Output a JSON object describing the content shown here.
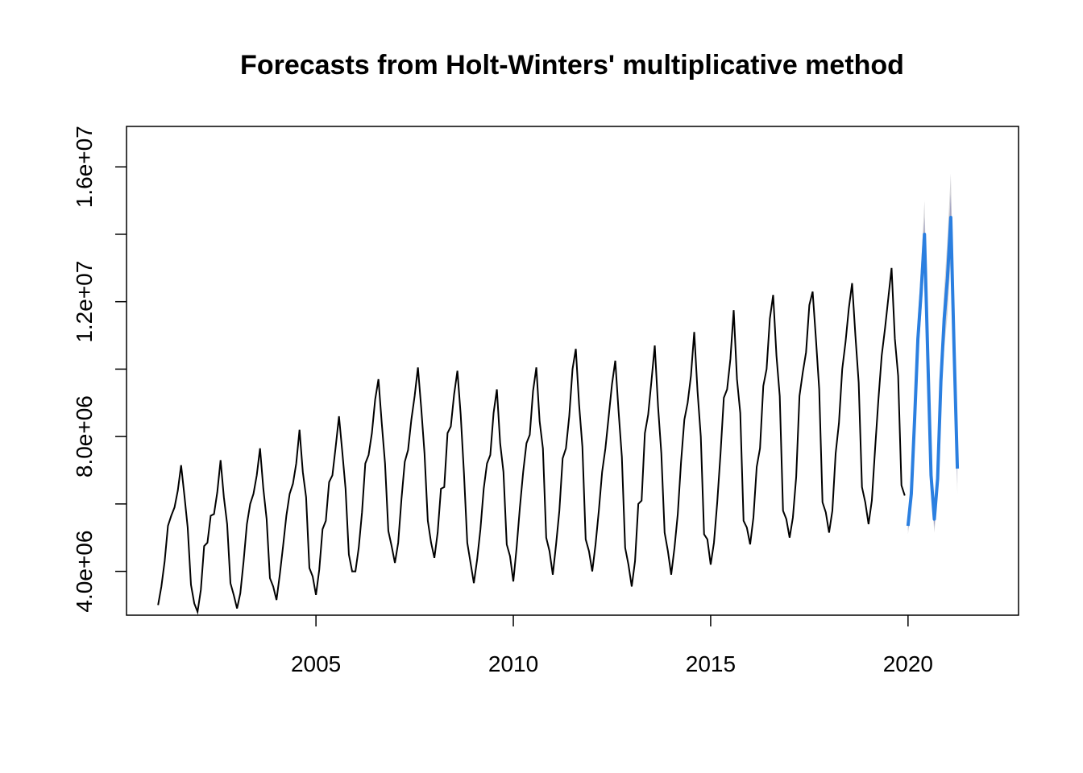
{
  "chart_data": {
    "type": "line",
    "title": "Forecasts from Holt-Winters' multiplicative method",
    "xlabel": "",
    "ylabel": "",
    "xlim": [
      2000.2,
      2022.8
    ],
    "ylim": [
      2700000,
      17200000
    ],
    "x_ticks": [
      2005,
      2010,
      2015,
      2020
    ],
    "x_tick_labels": [
      "2005",
      "2010",
      "2015",
      "2020"
    ],
    "y_ticks": [
      4000000,
      8000000,
      12000000,
      16000000
    ],
    "y_tick_labels": [
      "4.0e+06",
      "8.0e+06",
      "1.2e+07",
      "1.6e+07"
    ],
    "grid": false,
    "legend": "none",
    "colors": {
      "observed": "#000000",
      "forecast": "#2b7fe0",
      "band_outer": "#d4d4d8",
      "band_inner": "#a3a3c2"
    },
    "series": [
      {
        "start": [
          2001,
          1
        ],
        "frequency": 12,
        "values": [
          3000000,
          3550000,
          4300000,
          5350000,
          5650000,
          5900000,
          6400000,
          7150000,
          6250000,
          5300000,
          3600000,
          3050000,
          2800000,
          3450000,
          4750000,
          4850000,
          5650000,
          5700000,
          6350000,
          7300000,
          6200000,
          5400000,
          3650000,
          3300000,
          2900000,
          3350000,
          4300000,
          5400000,
          6000000,
          6300000,
          6850000,
          7650000,
          6450000,
          5550000,
          3800000,
          3550000,
          3150000,
          3900000,
          4750000,
          5650000,
          6300000,
          6600000,
          7200000,
          8200000,
          6950000,
          6200000,
          4100000,
          3850000,
          3300000,
          4050000,
          5250000,
          5500000,
          6650000,
          6850000,
          7700000,
          8600000,
          7550000,
          6450000,
          4500000,
          4000000,
          4000000,
          4700000,
          5750000,
          7200000,
          7450000,
          8100000,
          9100000,
          9700000,
          8400000,
          7200000,
          5200000,
          4750000,
          4250000,
          4850000,
          6150000,
          7250000,
          7600000,
          8500000,
          9200000,
          10050000,
          8850000,
          7500000,
          5500000,
          4850000,
          4400000,
          5150000,
          6450000,
          6500000,
          8100000,
          8300000,
          9250000,
          9950000,
          8650000,
          6900000,
          4850000,
          4250000,
          3650000,
          4350000,
          5250000,
          6450000,
          7200000,
          7450000,
          8700000,
          9400000,
          7800000,
          6950000,
          4800000,
          4450000,
          3700000,
          4700000,
          5900000,
          6950000,
          7800000,
          8050000,
          9350000,
          10050000,
          8450000,
          7650000,
          5000000,
          4600000,
          3900000,
          4800000,
          5800000,
          7350000,
          7650000,
          8600000,
          10000000,
          10600000,
          8950000,
          7700000,
          4950000,
          4600000,
          4000000,
          4800000,
          5800000,
          6950000,
          7650000,
          8600000,
          9550000,
          10250000,
          8750000,
          7400000,
          4700000,
          4200000,
          3550000,
          4300000,
          6000000,
          6100000,
          8100000,
          8650000,
          9650000,
          10700000,
          8900000,
          7500000,
          5150000,
          4600000,
          3900000,
          4700000,
          5700000,
          7250000,
          8500000,
          9000000,
          9800000,
          11100000,
          9350000,
          8000000,
          5100000,
          4950000,
          4200000,
          4850000,
          6050000,
          7500000,
          9150000,
          9400000,
          10300000,
          11750000,
          9700000,
          8700000,
          5500000,
          5300000,
          4800000,
          5600000,
          7100000,
          7650000,
          9500000,
          10000000,
          11500000,
          12200000,
          10400000,
          9200000,
          5800000,
          5550000,
          5000000,
          5600000,
          6800000,
          9200000,
          9900000,
          10500000,
          11900000,
          12300000,
          10900000,
          9400000,
          6050000,
          5750000,
          5150000,
          5800000,
          7500000,
          8400000,
          10000000,
          10800000,
          11800000,
          12550000,
          11000000,
          9600000,
          6500000,
          6050000,
          5400000,
          6100000,
          7650000,
          9100000,
          10400000,
          11200000,
          12100000,
          13000000,
          10900000,
          9800000,
          6550000,
          6250000
        ]
      },
      {
        "start": [
          2020,
          1
        ],
        "frequency": 12,
        "values": [
          5350000,
          6300000,
          8500000,
          10900000,
          12300000,
          14000000,
          10400000,
          6850000,
          5550000,
          6750000,
          9650000,
          11500000,
          12700000,
          14500000,
          10600000,
          7050000
        ],
        "lo95": [
          5100000,
          6000000,
          8100000,
          10300000,
          11600000,
          13200000,
          9800000,
          6400000,
          5150000,
          6250000,
          8950000,
          10600000,
          11600000,
          13300000,
          9650000,
          6300000
        ],
        "hi95": [
          5650000,
          6650000,
          8950000,
          11550000,
          13100000,
          15000000,
          11050000,
          7300000,
          5950000,
          7250000,
          10400000,
          12400000,
          13900000,
          15800000,
          11600000,
          7800000
        ],
        "lo80": [
          5200000,
          6120000,
          8250000,
          10550000,
          11900000,
          13550000,
          10050000,
          6600000,
          5300000,
          6450000,
          9250000,
          10950000,
          12050000,
          13800000,
          10050000,
          6600000
        ],
        "hi80": [
          5500000,
          6480000,
          8750000,
          11250000,
          12700000,
          14500000,
          10750000,
          7100000,
          5800000,
          7050000,
          10050000,
          12050000,
          13350000,
          15200000,
          11150000,
          7500000
        ]
      }
    ]
  }
}
